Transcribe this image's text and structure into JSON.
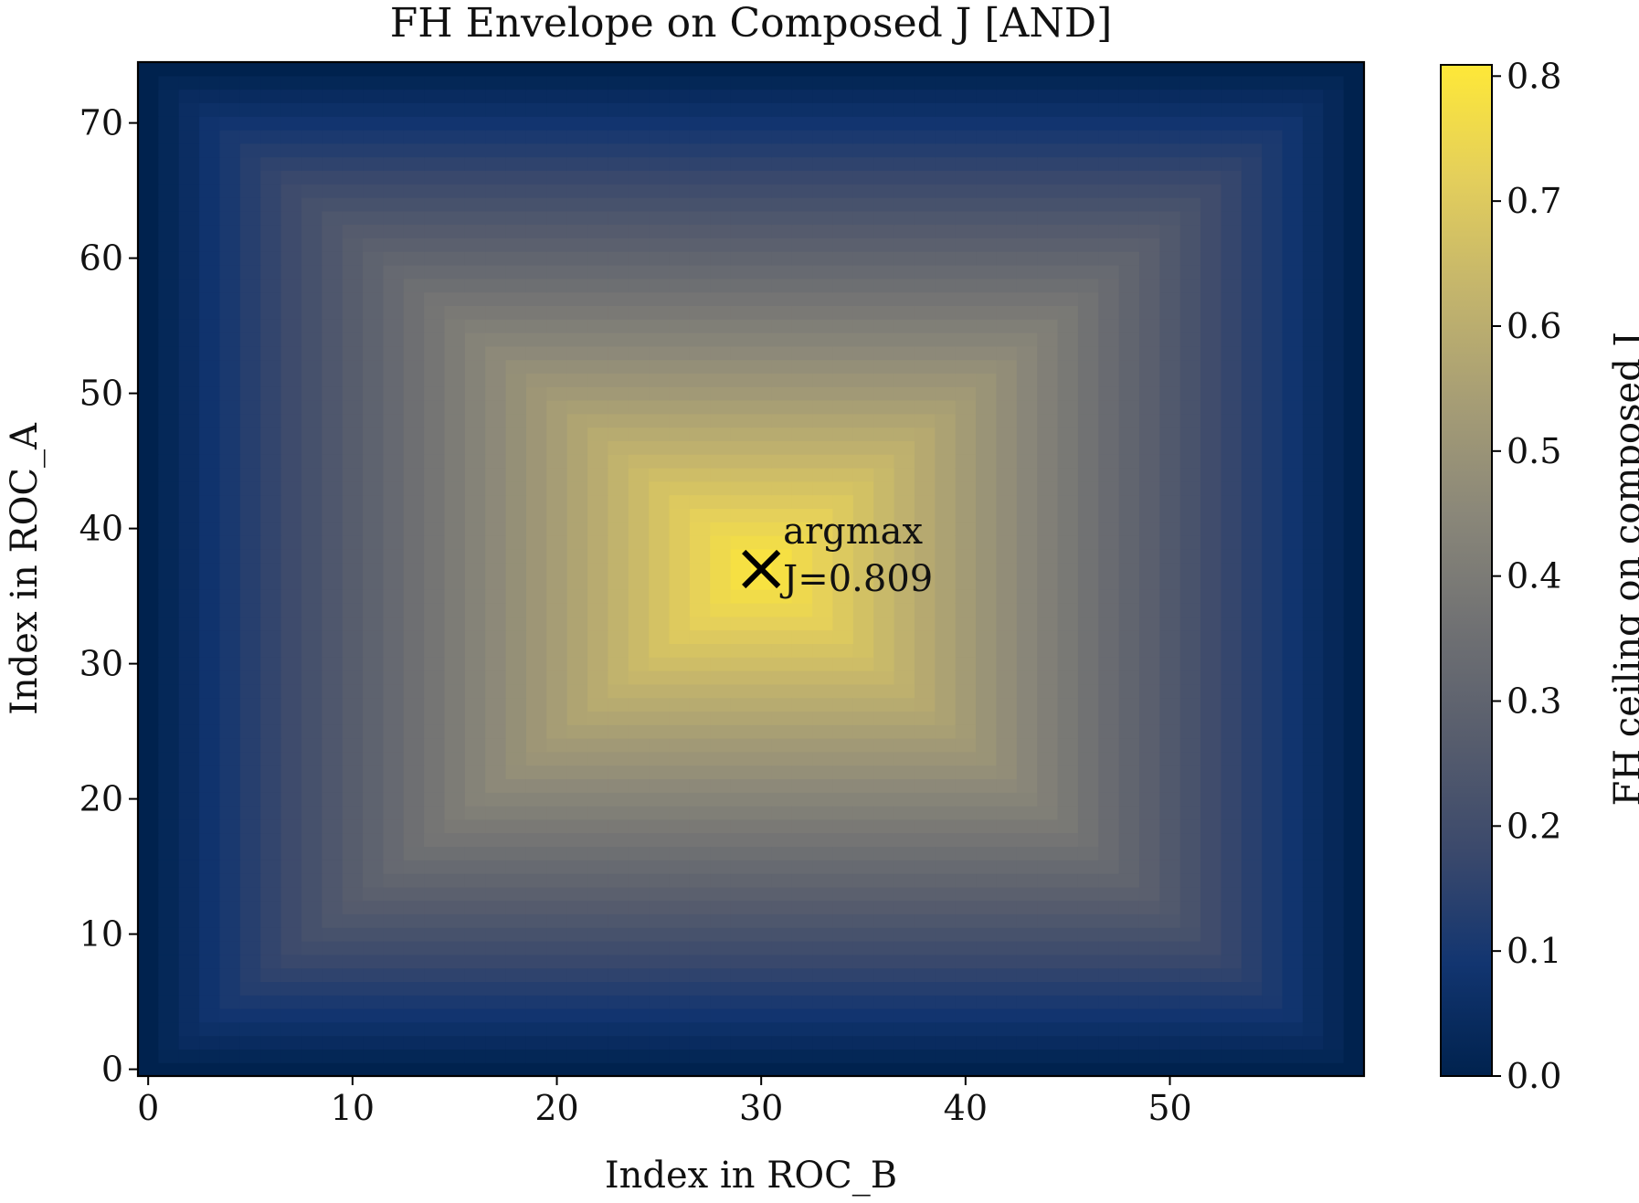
{
  "chart_data": {
    "type": "heatmap",
    "title": "FH Envelope on Composed J [AND]",
    "xlabel": "Index in ROC_B",
    "ylabel": "Index in ROC_A",
    "colorbar_label": "FH ceiling on composed J",
    "n_cols": 60,
    "n_rows": 75,
    "peak": {
      "x": 30,
      "y": 37,
      "value": 0.809
    },
    "edge_value": 0.0,
    "xlim": [
      -0.5,
      59.5
    ],
    "ylim": [
      -0.5,
      74.5
    ],
    "clim": [
      0.0,
      0.809
    ],
    "x_ticks": [
      0,
      10,
      20,
      30,
      40,
      50
    ],
    "y_ticks": [
      0,
      10,
      20,
      30,
      40,
      50,
      60,
      70
    ],
    "cbar_ticks": [
      "0.0",
      "0.1",
      "0.2",
      "0.3",
      "0.4",
      "0.5",
      "0.6",
      "0.7",
      "0.8"
    ],
    "colormap": "cividis",
    "colormap_stops": [
      "#00224e",
      "#123570",
      "#3b496c",
      "#575d6d",
      "#707173",
      "#8a8779",
      "#a69d75",
      "#c4b56c",
      "#e4cf5b",
      "#fee838"
    ],
    "annotation": {
      "marker": "×",
      "lines": [
        "argmax",
        "J=0.809"
      ]
    }
  }
}
